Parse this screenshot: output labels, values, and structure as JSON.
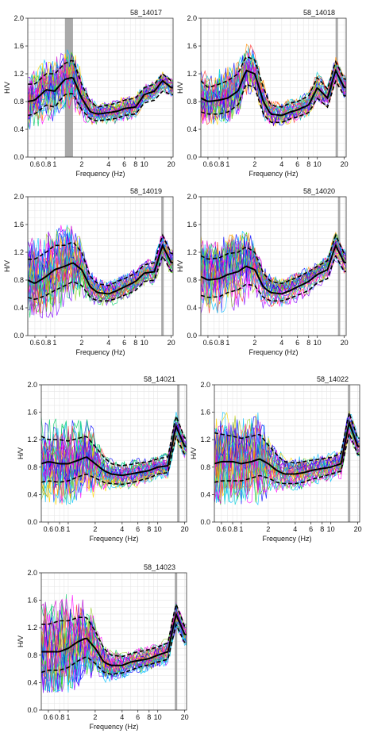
{
  "figure": {
    "axis_style": {
      "grid_color": "#e6e6e6",
      "frame_color": "#333333",
      "peak_band_color": "#9a9a9a"
    },
    "trace_palette": [
      "#ff00ff",
      "#cc00cc",
      "#0000ff",
      "#00bfff",
      "#00cc66",
      "#33cc00",
      "#ffd700",
      "#ff8c00",
      "#ff3333",
      "#8000ff",
      "#00ced1",
      "#9acd32"
    ]
  },
  "chart_data": [
    {
      "type": "line",
      "title": "58_14017",
      "xlabel": "Frequency (Hz)",
      "ylabel": "H/V",
      "x_scale": "log",
      "xlim": [
        0.5,
        21
      ],
      "ylim": [
        0,
        2
      ],
      "x_ticks": [
        "0.6",
        "0.8",
        "1",
        "2",
        "4",
        "6",
        "8",
        "10",
        "20"
      ],
      "y_ticks": [
        "0.0",
        "0.4",
        "0.8",
        "1.2",
        "1.6",
        "2.0"
      ],
      "peak_band": [
        1.3,
        1.6
      ],
      "x": [
        0.5,
        0.6,
        0.8,
        1.0,
        1.3,
        1.6,
        2.0,
        2.5,
        3.0,
        4.0,
        5.0,
        6.0,
        8.0,
        10.0,
        13.0,
        16.0,
        20.0
      ],
      "series": [
        {
          "role": "mean",
          "values": [
            0.8,
            0.82,
            0.97,
            0.95,
            1.12,
            1.15,
            0.85,
            0.65,
            0.62,
            0.64,
            0.66,
            0.7,
            0.72,
            0.9,
            0.95,
            1.1,
            1.0
          ]
        },
        {
          "role": "upper",
          "values": [
            1.05,
            1.05,
            1.2,
            1.2,
            1.35,
            1.4,
            1.05,
            0.8,
            0.72,
            0.75,
            0.78,
            0.82,
            0.85,
            1.0,
            1.05,
            1.2,
            1.1
          ]
        },
        {
          "role": "lower",
          "values": [
            0.6,
            0.62,
            0.75,
            0.72,
            0.9,
            0.92,
            0.68,
            0.55,
            0.52,
            0.54,
            0.56,
            0.6,
            0.62,
            0.78,
            0.82,
            0.95,
            0.9
          ]
        }
      ]
    },
    {
      "type": "line",
      "title": "58_14018",
      "xlabel": "Frequency (Hz)",
      "ylabel": "H/V",
      "x_scale": "log",
      "xlim": [
        0.5,
        21
      ],
      "ylim": [
        0,
        2
      ],
      "x_ticks": [
        "0.6",
        "0.8",
        "1",
        "2",
        "4",
        "6",
        "8",
        "10",
        "20"
      ],
      "y_ticks": [
        "0.0",
        "0.4",
        "0.8",
        "1.2",
        "1.6",
        "2.0"
      ],
      "peak_band": [
        16,
        17
      ],
      "x": [
        0.5,
        0.6,
        0.8,
        1.0,
        1.3,
        1.6,
        2.0,
        2.5,
        3.0,
        4.0,
        5.0,
        6.0,
        8.0,
        10.0,
        13.0,
        16.0,
        20.0
      ],
      "series": [
        {
          "role": "mean",
          "values": [
            0.85,
            0.8,
            0.82,
            0.85,
            0.95,
            1.25,
            1.2,
            0.8,
            0.62,
            0.6,
            0.65,
            0.68,
            0.75,
            1.0,
            0.85,
            1.25,
            1.0
          ]
        },
        {
          "role": "upper",
          "values": [
            1.1,
            1.0,
            1.05,
            1.1,
            1.2,
            1.45,
            1.4,
            1.0,
            0.75,
            0.72,
            0.78,
            0.8,
            0.88,
            1.15,
            0.98,
            1.38,
            1.12
          ]
        },
        {
          "role": "lower",
          "values": [
            0.65,
            0.62,
            0.62,
            0.65,
            0.75,
            1.05,
            1.0,
            0.62,
            0.5,
            0.5,
            0.55,
            0.58,
            0.64,
            0.85,
            0.72,
            1.1,
            0.88
          ]
        }
      ]
    },
    {
      "type": "line",
      "title": "58_14019",
      "xlabel": "Frequency (Hz)",
      "ylabel": "H/V",
      "x_scale": "log",
      "xlim": [
        0.5,
        21
      ],
      "ylim": [
        0,
        2
      ],
      "x_ticks": [
        "0.6",
        "0.8",
        "1",
        "2",
        "4",
        "6",
        "8",
        "10",
        "20"
      ],
      "y_ticks": [
        "0.0",
        "0.4",
        "0.8",
        "1.2",
        "1.6",
        "2.0"
      ],
      "peak_band": [
        15.5,
        16.5
      ],
      "x": [
        0.5,
        0.6,
        0.8,
        1.0,
        1.3,
        1.6,
        2.0,
        2.5,
        3.0,
        4.0,
        5.0,
        6.0,
        8.0,
        10.0,
        13.0,
        16.0,
        20.0
      ],
      "series": [
        {
          "role": "mean",
          "values": [
            0.8,
            0.75,
            0.85,
            0.95,
            1.0,
            1.05,
            0.95,
            0.7,
            0.62,
            0.6,
            0.65,
            0.7,
            0.78,
            0.9,
            0.92,
            1.3,
            1.05
          ]
        },
        {
          "role": "upper",
          "values": [
            1.1,
            1.1,
            1.2,
            1.3,
            1.3,
            1.35,
            1.2,
            0.85,
            0.75,
            0.72,
            0.78,
            0.82,
            0.9,
            1.02,
            1.05,
            1.45,
            1.18
          ]
        },
        {
          "role": "lower",
          "values": [
            0.55,
            0.52,
            0.58,
            0.65,
            0.72,
            0.78,
            0.72,
            0.55,
            0.5,
            0.5,
            0.54,
            0.58,
            0.65,
            0.78,
            0.8,
            1.15,
            0.92
          ]
        }
      ]
    },
    {
      "type": "line",
      "title": "58_14020",
      "xlabel": "Frequency (Hz)",
      "ylabel": "H/V",
      "x_scale": "log",
      "xlim": [
        0.5,
        21
      ],
      "ylim": [
        0,
        2
      ],
      "x_ticks": [
        "0.6",
        "0.8",
        "1",
        "2",
        "4",
        "6",
        "8",
        "10",
        "20"
      ],
      "y_ticks": [
        "0.0",
        "0.4",
        "0.8",
        "1.2",
        "1.6",
        "2.0"
      ],
      "peak_band": [
        17,
        18
      ],
      "x": [
        0.5,
        0.6,
        0.8,
        1.0,
        1.3,
        1.6,
        2.0,
        2.5,
        3.0,
        4.0,
        5.0,
        6.0,
        8.0,
        10.0,
        13.0,
        16.0,
        20.0
      ],
      "series": [
        {
          "role": "mean",
          "values": [
            0.85,
            0.8,
            0.82,
            0.88,
            0.92,
            1.0,
            0.95,
            0.7,
            0.62,
            0.6,
            0.65,
            0.7,
            0.78,
            0.88,
            0.95,
            1.3,
            1.05
          ]
        },
        {
          "role": "upper",
          "values": [
            1.15,
            1.1,
            1.12,
            1.18,
            1.2,
            1.28,
            1.2,
            0.9,
            0.78,
            0.75,
            0.8,
            0.84,
            0.92,
            1.0,
            1.08,
            1.45,
            1.18
          ]
        },
        {
          "role": "lower",
          "values": [
            0.58,
            0.55,
            0.56,
            0.62,
            0.66,
            0.74,
            0.72,
            0.55,
            0.5,
            0.5,
            0.54,
            0.58,
            0.65,
            0.76,
            0.82,
            1.15,
            0.92
          ]
        }
      ]
    },
    {
      "type": "line",
      "title": "58_14021",
      "xlabel": "Frequency (Hz)",
      "ylabel": "H/V",
      "x_scale": "log",
      "xlim": [
        0.5,
        21
      ],
      "ylim": [
        0,
        2
      ],
      "x_ticks": [
        "0.6",
        "0.8",
        "1",
        "2",
        "4",
        "6",
        "8",
        "10",
        "20"
      ],
      "y_ticks": [
        "0.0",
        "0.4",
        "0.8",
        "1.2",
        "1.6",
        "2.0"
      ],
      "peak_band": [
        16.5,
        17.5
      ],
      "x": [
        0.5,
        0.6,
        0.8,
        1.0,
        1.3,
        1.6,
        2.0,
        2.5,
        3.0,
        4.0,
        5.0,
        6.0,
        8.0,
        10.0,
        13.0,
        16.0,
        20.0
      ],
      "series": [
        {
          "role": "mean",
          "values": [
            0.85,
            0.88,
            0.85,
            0.85,
            0.9,
            0.95,
            0.85,
            0.75,
            0.7,
            0.68,
            0.7,
            0.72,
            0.75,
            0.8,
            0.82,
            1.4,
            1.1
          ]
        },
        {
          "role": "upper",
          "values": [
            1.25,
            1.2,
            1.2,
            1.18,
            1.22,
            1.25,
            1.1,
            0.95,
            0.85,
            0.82,
            0.84,
            0.86,
            0.88,
            0.92,
            0.95,
            1.55,
            1.22
          ]
        },
        {
          "role": "lower",
          "values": [
            0.58,
            0.6,
            0.58,
            0.6,
            0.66,
            0.7,
            0.64,
            0.58,
            0.56,
            0.55,
            0.57,
            0.6,
            0.64,
            0.7,
            0.72,
            1.25,
            0.98
          ]
        }
      ]
    },
    {
      "type": "line",
      "title": "58_14022",
      "xlabel": "Frequency (Hz)",
      "ylabel": "H/V",
      "x_scale": "log",
      "xlim": [
        0.5,
        21
      ],
      "ylim": [
        0,
        2
      ],
      "x_ticks": [
        "0.6",
        "0.8",
        "1",
        "2",
        "4",
        "6",
        "8",
        "10",
        "20"
      ],
      "y_ticks": [
        "0.0",
        "0.4",
        "0.8",
        "1.2",
        "1.6",
        "2.0"
      ],
      "peak_band": [
        15.5,
        16.5
      ],
      "x": [
        0.5,
        0.6,
        0.8,
        1.0,
        1.3,
        1.6,
        2.0,
        2.5,
        3.0,
        4.0,
        5.0,
        6.0,
        8.0,
        10.0,
        13.0,
        16.0,
        20.0
      ],
      "series": [
        {
          "role": "mean",
          "values": [
            0.85,
            0.88,
            0.88,
            0.85,
            0.88,
            0.92,
            0.85,
            0.75,
            0.7,
            0.7,
            0.72,
            0.75,
            0.78,
            0.8,
            0.85,
            1.45,
            1.1
          ]
        },
        {
          "role": "upper",
          "values": [
            1.3,
            1.28,
            1.25,
            1.22,
            1.25,
            1.28,
            1.12,
            0.98,
            0.88,
            0.86,
            0.88,
            0.9,
            0.92,
            0.94,
            1.0,
            1.6,
            1.22
          ]
        },
        {
          "role": "lower",
          "values": [
            0.58,
            0.6,
            0.6,
            0.6,
            0.64,
            0.68,
            0.64,
            0.58,
            0.56,
            0.56,
            0.58,
            0.62,
            0.66,
            0.7,
            0.74,
            1.3,
            0.98
          ]
        }
      ]
    },
    {
      "type": "line",
      "title": "58_14023",
      "xlabel": "Frequency (Hz)",
      "ylabel": "H/V",
      "x_scale": "log",
      "xlim": [
        0.5,
        21
      ],
      "ylim": [
        0,
        2
      ],
      "x_ticks": [
        "0.6",
        "0.8",
        "1",
        "2",
        "4",
        "6",
        "8",
        "10",
        "20"
      ],
      "y_ticks": [
        "0.0",
        "0.4",
        "0.8",
        "1.2",
        "1.6",
        "2.0"
      ],
      "peak_band": [
        15.5,
        16.5
      ],
      "x": [
        0.5,
        0.6,
        0.8,
        1.0,
        1.3,
        1.6,
        2.0,
        2.5,
        3.0,
        4.0,
        5.0,
        6.0,
        8.0,
        10.0,
        13.0,
        16.0,
        20.0
      ],
      "series": [
        {
          "role": "mean",
          "values": [
            0.85,
            0.85,
            0.85,
            0.9,
            1.0,
            1.05,
            0.9,
            0.7,
            0.65,
            0.65,
            0.7,
            0.72,
            0.75,
            0.8,
            0.85,
            1.4,
            1.1
          ]
        },
        {
          "role": "upper",
          "values": [
            1.25,
            1.25,
            1.3,
            1.3,
            1.35,
            1.35,
            1.15,
            0.9,
            0.8,
            0.78,
            0.82,
            0.85,
            0.88,
            0.92,
            0.98,
            1.55,
            1.22
          ]
        },
        {
          "role": "lower",
          "values": [
            0.55,
            0.58,
            0.58,
            0.62,
            0.72,
            0.78,
            0.68,
            0.55,
            0.52,
            0.54,
            0.58,
            0.62,
            0.66,
            0.7,
            0.74,
            1.25,
            0.98
          ]
        }
      ]
    }
  ]
}
